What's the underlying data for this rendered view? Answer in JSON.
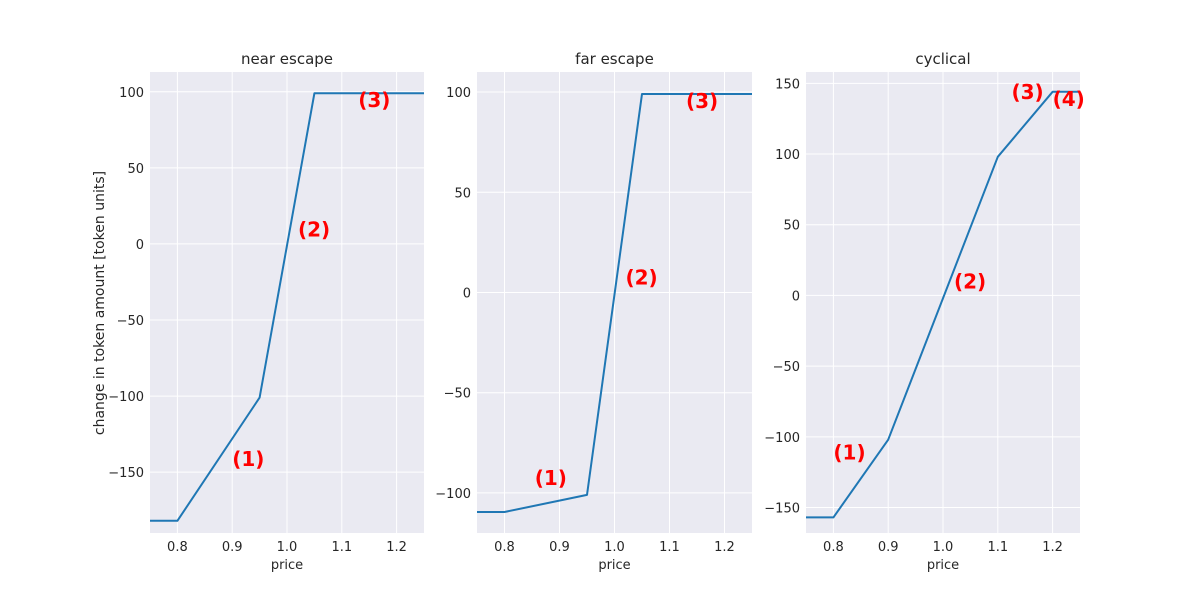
{
  "figure": {
    "shared_ylabel": "change in token amount [token units]",
    "colors": {
      "background": "#ffffff",
      "plot_area": "#eaeaf2",
      "grid": "#ffffff",
      "line": "#1f77b4",
      "annotation": "#ff0000",
      "text": "#262626"
    }
  },
  "chart_data": [
    {
      "type": "line",
      "title": "near escape",
      "xlabel": "price",
      "ylabel": "change in token amount [token units]",
      "xlim": [
        0.75,
        1.25
      ],
      "ylim": [
        -190,
        113
      ],
      "xticks": [
        0.8,
        0.9,
        1.0,
        1.1,
        1.2
      ],
      "xtick_labels": [
        "0.8",
        "0.9",
        "1.0",
        "1.1",
        "1.2"
      ],
      "yticks": [
        -150,
        -100,
        -50,
        0,
        50,
        100
      ],
      "ytick_labels": [
        "−150",
        "−100",
        "−50",
        "0",
        "50",
        "100"
      ],
      "grid": true,
      "series": [
        {
          "x": [
            0.75,
            0.8,
            0.95,
            1.05,
            1.25
          ],
          "y": [
            -182,
            -182,
            -101,
            99,
            99
          ]
        }
      ],
      "annotations": [
        {
          "text": "(1)",
          "x": 0.9,
          "y": -146
        },
        {
          "text": "(2)",
          "x": 1.02,
          "y": 5
        },
        {
          "text": "(3)",
          "x": 1.13,
          "y": 90
        }
      ]
    },
    {
      "type": "line",
      "title": "far escape",
      "xlabel": "price",
      "ylabel": "",
      "xlim": [
        0.75,
        1.25
      ],
      "ylim": [
        -120,
        110
      ],
      "xticks": [
        0.8,
        0.9,
        1.0,
        1.1,
        1.2
      ],
      "xtick_labels": [
        "0.8",
        "0.9",
        "1.0",
        "1.1",
        "1.2"
      ],
      "yticks": [
        -100,
        -50,
        0,
        50,
        100
      ],
      "ytick_labels": [
        "−100",
        "−50",
        "0",
        "50",
        "100"
      ],
      "grid": true,
      "series": [
        {
          "x": [
            0.75,
            0.8,
            0.95,
            1.05,
            1.25
          ],
          "y": [
            -109.5,
            -109.5,
            -101,
            99,
            99
          ]
        }
      ],
      "annotations": [
        {
          "text": "(1)",
          "x": 0.855,
          "y": -96
        },
        {
          "text": "(2)",
          "x": 1.02,
          "y": 4
        },
        {
          "text": "(3)",
          "x": 1.13,
          "y": 92
        }
      ]
    },
    {
      "type": "line",
      "title": "cyclical",
      "xlabel": "price",
      "ylabel": "",
      "xlim": [
        0.75,
        1.25
      ],
      "ylim": [
        -168,
        158
      ],
      "xticks": [
        0.8,
        0.9,
        1.0,
        1.1,
        1.2
      ],
      "xtick_labels": [
        "0.8",
        "0.9",
        "1.0",
        "1.1",
        "1.2"
      ],
      "yticks": [
        -150,
        -100,
        -50,
        0,
        50,
        100,
        150
      ],
      "ytick_labels": [
        "−150",
        "−100",
        "−50",
        "0",
        "50",
        "100",
        "150"
      ],
      "grid": true,
      "series": [
        {
          "x": [
            0.75,
            0.8,
            0.9,
            1.1,
            1.2,
            1.25
          ],
          "y": [
            -157,
            -157,
            -102,
            98,
            144,
            144
          ]
        }
      ],
      "annotations": [
        {
          "text": "(1)",
          "x": 0.8,
          "y": -116
        },
        {
          "text": "(2)",
          "x": 1.02,
          "y": 5
        },
        {
          "text": "(3)",
          "x": 1.125,
          "y": 139
        },
        {
          "text": "(4)",
          "x": 1.2,
          "y": 134
        }
      ]
    }
  ]
}
